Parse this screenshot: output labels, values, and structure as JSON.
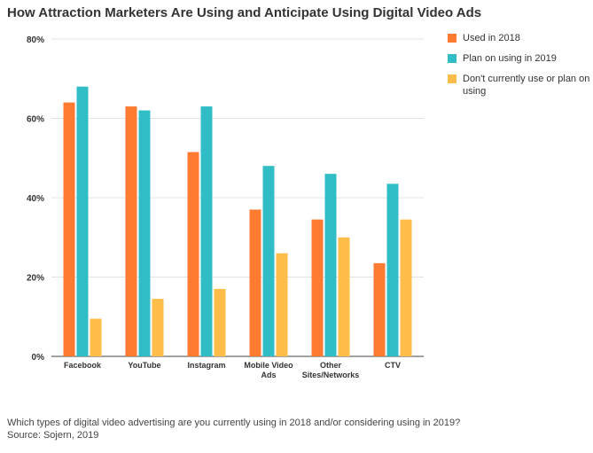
{
  "title": "How Attraction Marketers Are Using and Anticipate Using Digital Video Ads",
  "footer": {
    "note": "Which types of digital video advertising are you currently using in 2018 and/or considering using in 2019?",
    "source": "Source: Sojern, 2019"
  },
  "chart_data": {
    "type": "bar",
    "title": "How Attraction Marketers Are Using and Anticipate Using Digital Video Ads",
    "categories": [
      [
        "Facebook"
      ],
      [
        "YouTube"
      ],
      [
        "Instagram"
      ],
      [
        "Mobile Video",
        "Ads"
      ],
      [
        "Other",
        "Sites/Networks"
      ],
      [
        "CTV"
      ]
    ],
    "series": [
      {
        "name": "Used in 2018",
        "color": "#fe7b31",
        "values": [
          64,
          63,
          51.5,
          37,
          34.5,
          23.5
        ]
      },
      {
        "name": "Plan on using in 2019",
        "color": "#31bdc6",
        "values": [
          68,
          62,
          63,
          48,
          46,
          43.5
        ]
      },
      {
        "name": "Don't currently use or plan on using",
        "color": "#ffbe4a",
        "values": [
          9.5,
          14.5,
          17,
          26,
          30,
          34.5
        ]
      }
    ],
    "y_ticks": [
      "0%",
      "20%",
      "40%",
      "60%",
      "80%"
    ],
    "ylim": [
      0,
      80
    ],
    "grid": true,
    "legend": "right"
  }
}
